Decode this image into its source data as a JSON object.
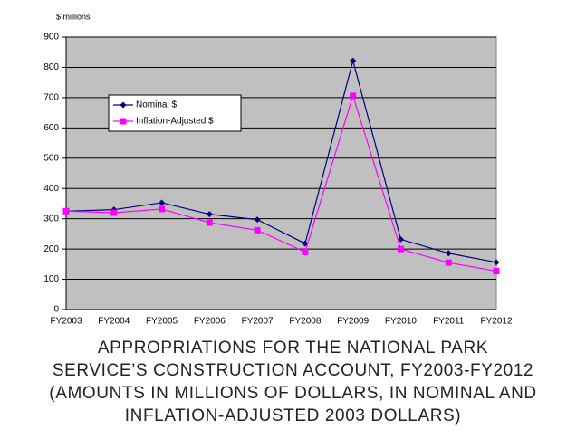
{
  "chart_data": {
    "type": "line",
    "title": "APPROPRIATIONS FOR THE NATIONAL PARK\nSERVICE’S CONSTRUCTION ACCOUNT, FY2003-FY2012\n(AMOUNTS IN MILLIONS OF DOLLARS, IN NOMINAL AND\nINFLATION-ADJUSTED 2003 DOLLARS)",
    "y_label": "$ millions",
    "categories": [
      "FY2003",
      "FY2004",
      "FY2005",
      "FY2006",
      "FY2007",
      "FY2008",
      "FY2009",
      "FY2010",
      "FY2011",
      "FY2012"
    ],
    "series": [
      {
        "name": "Nominal $",
        "color": "#000080",
        "marker": "diamond",
        "values": [
          325,
          330,
          353,
          315,
          297,
          218,
          822,
          232,
          186,
          156
        ]
      },
      {
        "name": "Inflation-Adjusted $",
        "color": "#ff00ff",
        "marker": "square",
        "values": [
          325,
          320,
          332,
          287,
          262,
          190,
          706,
          200,
          155,
          127
        ]
      }
    ],
    "ylim": [
      0,
      900
    ],
    "yticks": [
      0,
      100,
      200,
      300,
      400,
      500,
      600,
      700,
      800,
      900
    ],
    "grid": true,
    "legend": "upper left"
  }
}
